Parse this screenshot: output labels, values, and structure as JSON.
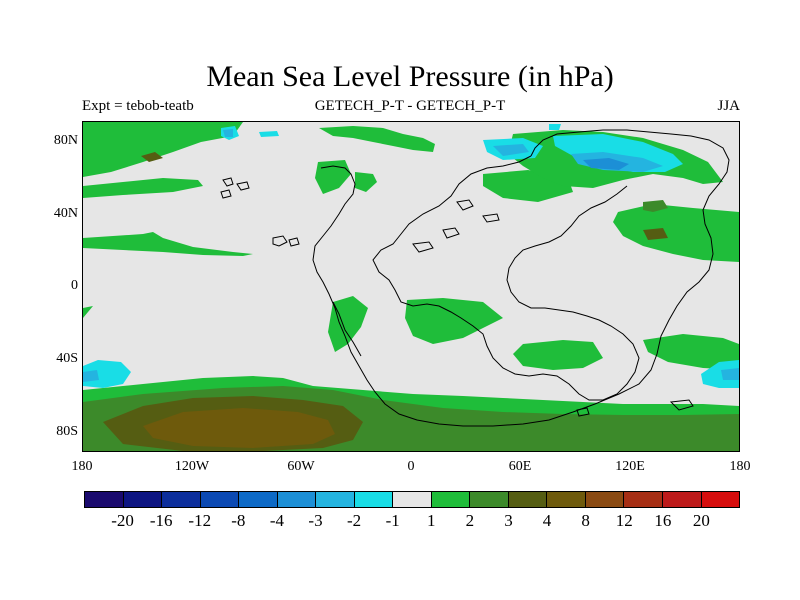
{
  "header": {
    "title": "Mean Sea Level Pressure (in hPa)",
    "left": "Expt = tebob-teatb",
    "center": "GETECH_P-T - GETECH_P-T",
    "right": "JJA"
  },
  "map_data": {
    "projection": "cylindrical-equidistant",
    "lon_range": [
      -180,
      180
    ],
    "lat_range": [
      -90,
      90
    ],
    "lat_ticks": [
      {
        "value": 80,
        "label": "80N"
      },
      {
        "value": 40,
        "label": "40N"
      },
      {
        "value": 0,
        "label": "0"
      },
      {
        "value": -40,
        "label": "40S"
      },
      {
        "value": -80,
        "label": "80S"
      }
    ],
    "lon_ticks": [
      {
        "value": -180,
        "label": "180"
      },
      {
        "value": -120,
        "label": "120W"
      },
      {
        "value": -60,
        "label": "60W"
      },
      {
        "value": 0,
        "label": "0"
      },
      {
        "value": 60,
        "label": "60E"
      },
      {
        "value": 120,
        "label": "120E"
      },
      {
        "value": 180,
        "label": "180"
      }
    ]
  },
  "colorbar": {
    "colors": [
      "#1a0a6e",
      "#0d1582",
      "#0c2e9c",
      "#0b49b3",
      "#0d6ac7",
      "#1c8fd6",
      "#24b4e0",
      "#19dde6",
      "#e6e6e6",
      "#1fbd3a",
      "#3c8a2a",
      "#555d12",
      "#6e5a0c",
      "#8a4a12",
      "#a62e14",
      "#bd1a1a",
      "#d60d0d"
    ],
    "labels": [
      "-20",
      "-16",
      "-12",
      "-8",
      "-4",
      "-3",
      "-2",
      "-1",
      "1",
      "2",
      "3",
      "4",
      "8",
      "12",
      "16",
      "20"
    ]
  }
}
